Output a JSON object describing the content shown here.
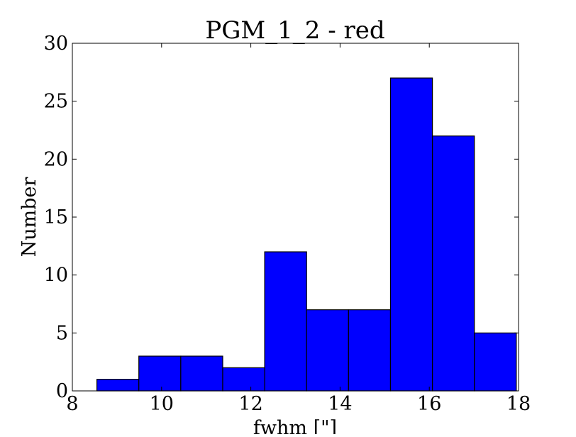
{
  "chart_data": {
    "type": "bar",
    "title": "PGM_1_2 - red",
    "xlabel": "fwhm [\"]",
    "ylabel": "Number",
    "xlim": [
      8,
      18
    ],
    "ylim": [
      0,
      30
    ],
    "x_ticks": [
      8,
      10,
      12,
      14,
      16,
      18
    ],
    "y_ticks": [
      0,
      5,
      10,
      15,
      20,
      25,
      30
    ],
    "bins": [
      {
        "x_start": 8.55,
        "x_end": 9.49,
        "value": 1
      },
      {
        "x_start": 9.49,
        "x_end": 10.43,
        "value": 3
      },
      {
        "x_start": 10.43,
        "x_end": 11.37,
        "value": 3
      },
      {
        "x_start": 11.37,
        "x_end": 12.31,
        "value": 2
      },
      {
        "x_start": 12.31,
        "x_end": 13.25,
        "value": 12
      },
      {
        "x_start": 13.25,
        "x_end": 14.19,
        "value": 7
      },
      {
        "x_start": 14.19,
        "x_end": 15.13,
        "value": 7
      },
      {
        "x_start": 15.13,
        "x_end": 16.07,
        "value": 27
      },
      {
        "x_start": 16.07,
        "x_end": 17.01,
        "value": 22
      },
      {
        "x_start": 17.01,
        "x_end": 17.95,
        "value": 5
      }
    ],
    "bar_color": "#0000ff",
    "edge_color": "#000000",
    "grid": false
  }
}
